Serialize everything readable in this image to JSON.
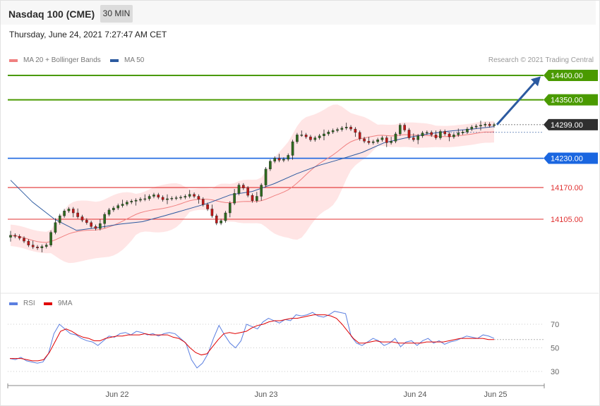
{
  "header": {
    "title": "Nasdaq 100 (CME)",
    "timeframe": "30 MIN",
    "date": "Thursday, June 24, 2021 7:27:47 AM CET",
    "copyright": "Research © 2021 Trading Central"
  },
  "legend": {
    "ma20": {
      "label": "MA 20 + Bollinger Bands",
      "color": "#f08080"
    },
    "ma50": {
      "label": "MA 50",
      "color": "#2c5aa0"
    },
    "rsi": {
      "label": "RSI",
      "color": "#5b7fe0"
    },
    "rsi9": {
      "label": "9MA",
      "color": "#e00000"
    }
  },
  "chart_data": [
    {
      "type": "line",
      "chart": "price",
      "note_candles": "approximate 30-minute candles read off the chart",
      "x_ticks": [
        "Jun 22",
        "Jun 23",
        "Jun 24",
        "Jun 25"
      ],
      "levels": [
        {
          "value": 14400.0,
          "label": "14400.00",
          "style": "resistance",
          "color": "#4a9a00"
        },
        {
          "value": 14350.0,
          "label": "14350.00",
          "style": "resistance",
          "color": "#4a9a00"
        },
        {
          "value": 14299.0,
          "label": "14299.00",
          "style": "last",
          "color": "#2f2f2f"
        },
        {
          "value": 14230.0,
          "label": "14230.00",
          "style": "pivot",
          "color": "#1a66e0"
        },
        {
          "value": 14170.0,
          "label": "14170.00",
          "style": "support",
          "color": "#e03030"
        },
        {
          "value": 14105.0,
          "label": "14105.00",
          "style": "support",
          "color": "#e03030"
        }
      ],
      "ylim": [
        13950,
        14450
      ],
      "closes": [
        14072,
        14070,
        14066,
        14060,
        14052,
        14048,
        14046,
        14049,
        14052,
        14078,
        14098,
        14112,
        14122,
        14126,
        14118,
        14110,
        14103,
        14098,
        14090,
        14086,
        14096,
        14115,
        14124,
        14128,
        14133,
        14136,
        14140,
        14142,
        14144,
        14146,
        14147,
        14152,
        14155,
        14150,
        14145,
        14147,
        14148,
        14149,
        14150,
        14152,
        14156,
        14152,
        14146,
        14135,
        14126,
        14112,
        14097,
        14102,
        14118,
        14138,
        14158,
        14175,
        14169,
        14154,
        14143,
        14152,
        14175,
        14208,
        14224,
        14230,
        14226,
        14228,
        14236,
        14264,
        14278,
        14278,
        14274,
        14268,
        14272,
        14276,
        14280,
        14284,
        14287,
        14289,
        14292,
        14294,
        14290,
        14283,
        14270,
        14265,
        14262,
        14264,
        14268,
        14272,
        14262,
        14265,
        14280,
        14298,
        14288,
        14272,
        14268,
        14276,
        14282,
        14283,
        14278,
        14272,
        14285,
        14280,
        14274,
        14278,
        14282,
        14284,
        14290,
        14294,
        14296,
        14298,
        14300,
        14297,
        14299
      ],
      "ma50": [
        14185,
        14140,
        14105,
        14082,
        14088,
        14095,
        14100,
        14112,
        14125,
        14138,
        14155,
        14162,
        14178,
        14198,
        14215,
        14228,
        14242,
        14262,
        14272,
        14280,
        14286,
        14290,
        14295
      ],
      "bb_note": "pink band = MA20 Bollinger envelope"
    },
    {
      "type": "line",
      "chart": "rsi",
      "ylim": [
        20,
        85
      ],
      "y_ticks": [
        30,
        50,
        70
      ],
      "series": [
        {
          "name": "RSI",
          "values": [
            41,
            40,
            42,
            39,
            38,
            37,
            38,
            45,
            62,
            70,
            66,
            62,
            61,
            58,
            56,
            55,
            52,
            56,
            60,
            59,
            62,
            63,
            61,
            64,
            63,
            61,
            62,
            60,
            62,
            63,
            62,
            58,
            54,
            40,
            33,
            37,
            45,
            58,
            69,
            61,
            54,
            50,
            56,
            70,
            68,
            66,
            72,
            75,
            73,
            71,
            74,
            73,
            78,
            77,
            78,
            80,
            77,
            76,
            78,
            81,
            80,
            79,
            60,
            54,
            52,
            55,
            58,
            56,
            52,
            54,
            58,
            51,
            55,
            56,
            52,
            56,
            58,
            54,
            56,
            53,
            55,
            56,
            58,
            60,
            59,
            58,
            61,
            60,
            58
          ]
        },
        {
          "name": "9MA",
          "values": [
            41,
            41,
            41,
            40,
            39,
            39,
            40,
            46,
            55,
            64,
            66,
            64,
            61,
            59,
            58,
            56,
            56,
            58,
            59,
            60,
            60,
            61,
            61,
            61,
            62,
            61,
            61,
            61,
            61,
            59,
            58,
            55,
            50,
            46,
            44,
            45,
            51,
            57,
            62,
            63,
            62,
            63,
            64,
            67,
            69,
            70,
            72,
            73,
            73,
            74,
            75,
            75,
            76,
            77,
            78,
            78,
            78,
            77,
            75,
            70,
            64,
            58,
            54,
            54,
            55,
            56,
            55,
            55,
            55,
            54,
            54,
            54,
            54,
            54,
            55,
            55,
            55,
            55,
            56,
            57,
            58,
            58,
            58,
            58,
            58,
            57,
            57
          ]
        }
      ]
    }
  ]
}
